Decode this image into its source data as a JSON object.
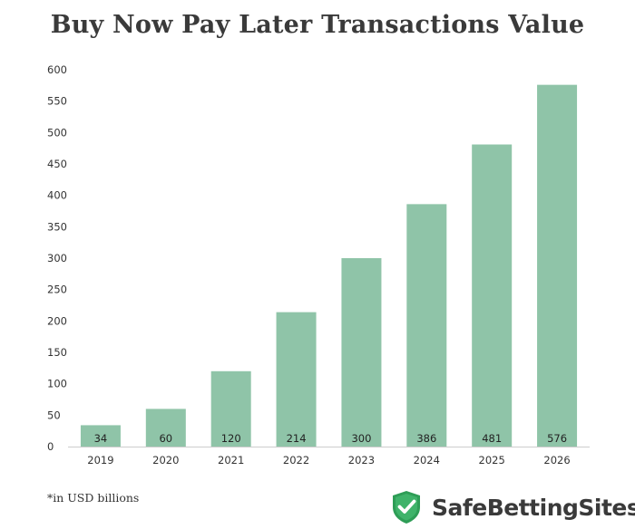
{
  "chart_data": {
    "type": "bar",
    "title": "Buy Now Pay Later Transactions Value",
    "categories": [
      "2019",
      "2020",
      "2021",
      "2022",
      "2023",
      "2024",
      "2025",
      "2026"
    ],
    "values": [
      34,
      60,
      120,
      214,
      300,
      386,
      481,
      576
    ],
    "value_labels": [
      "34",
      "60",
      "120",
      "214",
      "300",
      "386",
      "481",
      "576"
    ],
    "ylim": [
      0,
      600
    ],
    "yticks": [
      0,
      50,
      100,
      150,
      200,
      250,
      300,
      350,
      400,
      450,
      500,
      550,
      600
    ],
    "ytick_labels": [
      "0",
      "50",
      "100",
      "150",
      "200",
      "250",
      "300",
      "350",
      "400",
      "450",
      "500",
      "550",
      "600"
    ],
    "grid": false,
    "bar_color": "#8fc4a8"
  },
  "footnote": "*in USD billions",
  "brand": {
    "name": "SafeBettingSites",
    "icon": "shield-check-icon",
    "icon_color": "#2e9d56"
  }
}
